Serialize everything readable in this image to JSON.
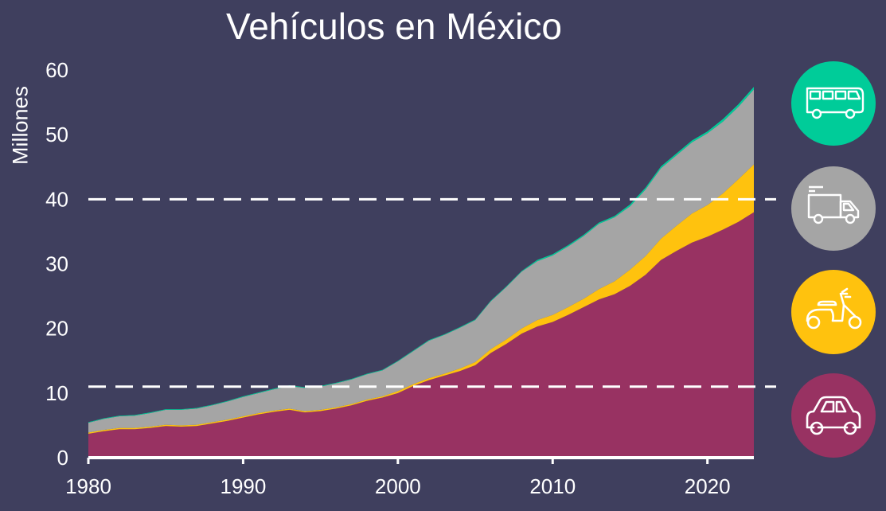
{
  "chart_data": {
    "type": "area",
    "stacked": true,
    "title": "Vehículos en México",
    "ylabel": "Millones",
    "xlabel": "",
    "xlim": [
      1980,
      2023
    ],
    "ylim": [
      0,
      60
    ],
    "x_ticks": [
      "1980",
      "1990",
      "2000",
      "2010",
      "2020"
    ],
    "y_ticks": [
      "0",
      "10",
      "20",
      "30",
      "40",
      "50",
      "60"
    ],
    "reference_lines": [
      11,
      40
    ],
    "grid": false,
    "legend": "icons-right",
    "x": [
      1980,
      1981,
      1982,
      1983,
      1984,
      1985,
      1986,
      1987,
      1988,
      1989,
      1990,
      1991,
      1992,
      1993,
      1994,
      1995,
      1996,
      1997,
      1998,
      1999,
      2000,
      2001,
      2002,
      2003,
      2004,
      2005,
      2006,
      2007,
      2008,
      2009,
      2010,
      2011,
      2012,
      2013,
      2014,
      2015,
      2016,
      2017,
      2018,
      2019,
      2020,
      2021,
      2022,
      2023
    ],
    "series": [
      {
        "icon": "car-icon",
        "color": "#983262",
        "values": [
          3.7,
          4.1,
          4.4,
          4.4,
          4.6,
          4.9,
          4.8,
          4.9,
          5.3,
          5.7,
          6.2,
          6.7,
          7.1,
          7.4,
          7.0,
          7.2,
          7.6,
          8.1,
          8.8,
          9.3,
          10.0,
          11.1,
          12.0,
          12.7,
          13.4,
          14.3,
          16.2,
          17.6,
          19.2,
          20.3,
          21.0,
          22.1,
          23.3,
          24.5,
          25.3,
          26.6,
          28.3,
          30.6,
          32.0,
          33.3,
          34.2,
          35.3,
          36.5,
          38.0
        ]
      },
      {
        "icon": "motorcycle-icon",
        "color": "#ffc20e",
        "values": [
          0.2,
          0.2,
          0.2,
          0.2,
          0.2,
          0.2,
          0.2,
          0.2,
          0.2,
          0.2,
          0.2,
          0.2,
          0.2,
          0.2,
          0.2,
          0.2,
          0.2,
          0.2,
          0.2,
          0.2,
          0.3,
          0.3,
          0.3,
          0.3,
          0.4,
          0.5,
          0.6,
          0.7,
          0.8,
          1.0,
          1.1,
          1.2,
          1.3,
          1.6,
          2.0,
          2.5,
          2.9,
          3.3,
          3.9,
          4.5,
          4.9,
          5.6,
          6.6,
          7.4
        ]
      },
      {
        "icon": "truck-icon",
        "color": "#a5a5a5",
        "values": [
          1.5,
          1.7,
          1.8,
          1.9,
          2.1,
          2.3,
          2.4,
          2.5,
          2.6,
          2.8,
          3.0,
          3.1,
          3.3,
          3.5,
          3.6,
          3.6,
          3.7,
          3.8,
          3.9,
          4.0,
          4.6,
          5.1,
          5.8,
          6.0,
          6.3,
          6.5,
          7.4,
          8.1,
          8.8,
          9.1,
          9.2,
          9.4,
          9.7,
          10.1,
          9.9,
          9.8,
          10.3,
          10.9,
          10.9,
          11.0,
          11.1,
          11.1,
          11.2,
          11.6
        ]
      },
      {
        "icon": "bus-icon",
        "color": "#00cc99",
        "values": [
          0.1,
          0.1,
          0.1,
          0.1,
          0.1,
          0.1,
          0.1,
          0.1,
          0.1,
          0.1,
          0.1,
          0.1,
          0.1,
          0.1,
          0.1,
          0.1,
          0.1,
          0.1,
          0.1,
          0.1,
          0.1,
          0.1,
          0.1,
          0.1,
          0.1,
          0.1,
          0.1,
          0.1,
          0.1,
          0.2,
          0.2,
          0.2,
          0.2,
          0.2,
          0.2,
          0.3,
          0.3,
          0.3,
          0.3,
          0.3,
          0.3,
          0.4,
          0.4,
          0.4
        ]
      }
    ]
  }
}
